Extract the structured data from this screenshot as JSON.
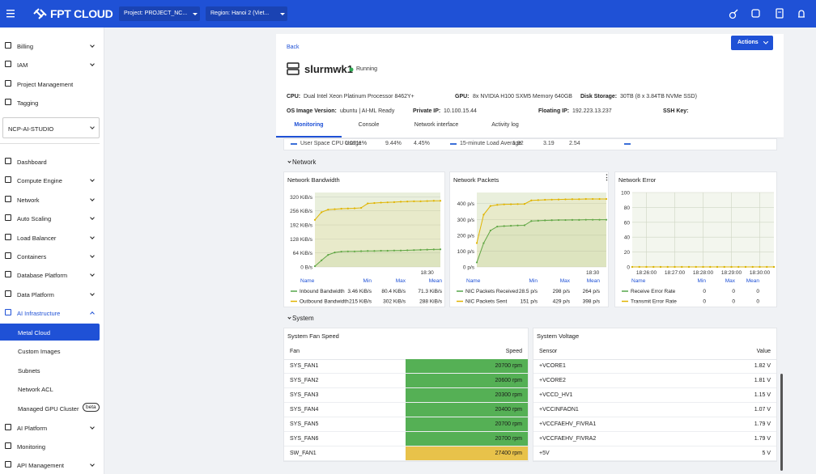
{
  "topbar": {
    "logo": "FPT CLOUD",
    "project": "Project: PROJECT_NC...",
    "region": "Region: Hanoi 2 (Viet..."
  },
  "sidebar": {
    "menu_top": [
      {
        "label": "Billing",
        "expandable": true
      },
      {
        "label": "IAM",
        "expandable": true
      },
      {
        "label": "Project Management"
      },
      {
        "label": "Tagging"
      }
    ],
    "project": "NCP-AI-STUDIO",
    "menu": [
      {
        "label": "Dashboard"
      },
      {
        "label": "Compute Engine",
        "expandable": true
      },
      {
        "label": "Network",
        "expandable": true
      },
      {
        "label": "Auto Scaling",
        "expandable": true
      },
      {
        "label": "Load Balancer",
        "expandable": true
      },
      {
        "label": "Containers",
        "expandable": true
      },
      {
        "label": "Database Platform",
        "expandable": true
      },
      {
        "label": "Data Platform",
        "expandable": true
      },
      {
        "label": "AI Infrastructure",
        "expandable": true,
        "expanded": true,
        "children": [
          {
            "label": "Metal Cloud",
            "active": true
          },
          {
            "label": "Custom Images"
          },
          {
            "label": "Subnets"
          },
          {
            "label": "Network ACL"
          },
          {
            "label": "Managed GPU Cluster",
            "badge": "beta"
          }
        ]
      },
      {
        "label": "AI Platform",
        "expandable": true
      },
      {
        "label": "Monitoring"
      },
      {
        "label": "API Management",
        "expandable": true
      }
    ]
  },
  "header": {
    "back": "Back",
    "actions": "Actions",
    "title": "slurmwk1",
    "status": "Running",
    "details": [
      {
        "label": "CPU:",
        "value": "Dual Intel Xeon Platinum Processor 8462Y+"
      },
      {
        "label": "GPU:",
        "value": "8x NVIDIA H100 SXM5 Memory 640GB"
      },
      {
        "label": "Disk Storage:",
        "value": "30TB (8 x 3.84TB NVMe SSD)"
      },
      {
        "label": "OS Image Version:",
        "value": "ubuntu | AI-ML Ready"
      },
      {
        "label": "Private IP:",
        "value": "10.100.15.44"
      },
      {
        "label": "Floating IP:",
        "value": "192.223.13.237"
      },
      {
        "label": "SSH Key:",
        "value": ""
      }
    ],
    "tabs": [
      "Monitoring",
      "Console",
      "Network interface",
      "Activity log"
    ],
    "active_tab": 0
  },
  "cut_row": [
    {
      "name": "User Space CPU Usage",
      "stats": [
        "0.0711%",
        "9.44%",
        "4.45%"
      ]
    },
    {
      "name": "15-minute Load Average",
      "stats": [
        "1.92",
        "3.19",
        "2.54"
      ]
    }
  ],
  "network": {
    "title": "Network",
    "charts": [
      {
        "type": "line",
        "title": "Network Bandwidth",
        "categories": [
          null,
          null,
          null,
          null,
          null,
          null,
          null,
          null,
          null,
          null,
          null,
          null,
          null,
          null,
          null,
          null,
          null,
          "18:30",
          null,
          null
        ],
        "ylim": [
          0,
          340
        ],
        "yticks": [
          {
            "value": 0,
            "label": "0 B/s"
          },
          {
            "value": 64,
            "label": "64 KiB/s"
          },
          {
            "value": 128,
            "label": "128 KiB/s"
          },
          {
            "value": 192,
            "label": "192 KiB/s"
          },
          {
            "value": 256,
            "label": "256 KiB/s"
          },
          {
            "value": 320,
            "label": "320 KiB/s"
          }
        ],
        "grid": true,
        "plot_bg": "#e9efdc",
        "legend_headers": [
          "Name",
          "Min",
          "Max",
          "Mean"
        ],
        "series": [
          {
            "name": "Inbound Bandwidth",
            "color": "#56a64b",
            "values": [
              3.46,
              30,
              55,
              66,
              70,
              71,
              71,
              72,
              73,
              73,
              74,
              74,
              75,
              75,
              76,
              77,
              78,
              79,
              80,
              80.4
            ],
            "stats": [
              "3.46 KiB/s",
              "80.4 KiB/s",
              "71.3 KiB/s"
            ]
          },
          {
            "name": "Outbound Bandwidth",
            "color": "#e0b400",
            "values": [
              215,
              250,
              262,
              264,
              266,
              267,
              268,
              270,
              290,
              292,
              294,
              295,
              296,
              298,
              299,
              300,
              300,
              301,
              302,
              302
            ],
            "stats": [
              "215 KiB/s",
              "302 KiB/s",
              "288 KiB/s"
            ]
          }
        ]
      },
      {
        "type": "line",
        "title": "Network Packets",
        "categories": [
          null,
          null,
          null,
          null,
          null,
          null,
          null,
          null,
          null,
          null,
          null,
          null,
          null,
          null,
          null,
          null,
          null,
          "18:30",
          null,
          null
        ],
        "ylim": [
          0,
          470
        ],
        "yticks": [
          {
            "value": 0,
            "label": "0 p/s"
          },
          {
            "value": 100,
            "label": "100 p/s"
          },
          {
            "value": 200,
            "label": "200 p/s"
          },
          {
            "value": 300,
            "label": "300 p/s"
          },
          {
            "value": 400,
            "label": "400 p/s"
          }
        ],
        "grid": true,
        "plot_bg": "#e9efdc",
        "legend_headers": [
          "Name",
          "Min",
          "Max",
          "Mean"
        ],
        "series": [
          {
            "name": "NIC Packets Received",
            "color": "#56a64b",
            "values": [
              28.5,
              150,
              230,
              255,
              258,
              260,
              262,
              263,
              290,
              292,
              294,
              295,
              296,
              296,
              297,
              297,
              298,
              298,
              298,
              298
            ],
            "stats": [
              "28.5 p/s",
              "298 p/s",
              "264 p/s"
            ]
          },
          {
            "name": "NIC Packets Sent",
            "color": "#e0b400",
            "values": [
              151,
              330,
              385,
              392,
              395,
              396,
              397,
              398,
              420,
              422,
              424,
              425,
              426,
              427,
              428,
              428,
              429,
              429,
              429,
              429
            ],
            "stats": [
              "151 p/s",
              "429 p/s",
              "398 p/s"
            ]
          }
        ]
      },
      {
        "type": "line",
        "title": "Network Error",
        "categories": [
          null,
          null,
          "18:26:00",
          null,
          null,
          null,
          "18:27:00",
          null,
          null,
          null,
          "18:28:00",
          null,
          null,
          null,
          "18:29:00",
          null,
          null,
          null,
          "18:30:00",
          null,
          null
        ],
        "ylim": [
          0,
          100
        ],
        "yticks": [
          0,
          20,
          40,
          60,
          80,
          100
        ],
        "grid": true,
        "xgrid": true,
        "plot_bg": "#f3f6ee",
        "legend_headers": [
          "Name",
          "Min",
          "Max",
          "Mean"
        ],
        "series": [
          {
            "name": "Receive Error Rate",
            "color": "#56a64b",
            "values": [
              0,
              0,
              0,
              0,
              0,
              0,
              0,
              0,
              0,
              0,
              0,
              0,
              0,
              0,
              0,
              0,
              0,
              0,
              0,
              0,
              0
            ],
            "stats": [
              "0",
              "0",
              "0"
            ]
          },
          {
            "name": "Transmit Error Rate",
            "color": "#e0b400",
            "values": [
              0,
              0,
              0,
              0,
              0,
              0,
              0,
              0,
              0,
              0,
              0,
              0,
              0,
              0,
              0,
              0,
              0,
              0,
              0,
              0,
              0
            ],
            "stats": [
              "0",
              "0",
              "0"
            ]
          }
        ]
      }
    ]
  },
  "system": {
    "title": "System",
    "fan": {
      "title": "System Fan Speed",
      "headers": [
        "Fan",
        "Speed"
      ],
      "rows": [
        {
          "name": "SYS_FAN1",
          "value": "20700 rpm",
          "color": "#55b055"
        },
        {
          "name": "SYS_FAN2",
          "value": "20600 rpm",
          "color": "#55b055"
        },
        {
          "name": "SYS_FAN3",
          "value": "20300 rpm",
          "color": "#55b055"
        },
        {
          "name": "SYS_FAN4",
          "value": "20400 rpm",
          "color": "#55b055"
        },
        {
          "name": "SYS_FAN5",
          "value": "20700 rpm",
          "color": "#55b055"
        },
        {
          "name": "SYS_FAN6",
          "value": "20700 rpm",
          "color": "#55b055"
        },
        {
          "name": "SW_FAN1",
          "value": "27400 rpm",
          "color": "#e8c24a"
        }
      ]
    },
    "voltage": {
      "title": "System Voltage",
      "headers": [
        "Sensor",
        "Value"
      ],
      "rows": [
        {
          "name": "+VCORE1",
          "value": "1.82 V"
        },
        {
          "name": "+VCORE2",
          "value": "1.81 V"
        },
        {
          "name": "+VCCD_HV1",
          "value": "1.15 V"
        },
        {
          "name": "+VCCINFAON1",
          "value": "1.07 V"
        },
        {
          "name": "+VCCFAEHV_FIVRA1",
          "value": "1.79 V"
        },
        {
          "name": "+VCCFAEHV_FIVRA2",
          "value": "1.79 V"
        },
        {
          "name": "+5V",
          "value": "5 V"
        }
      ]
    }
  }
}
